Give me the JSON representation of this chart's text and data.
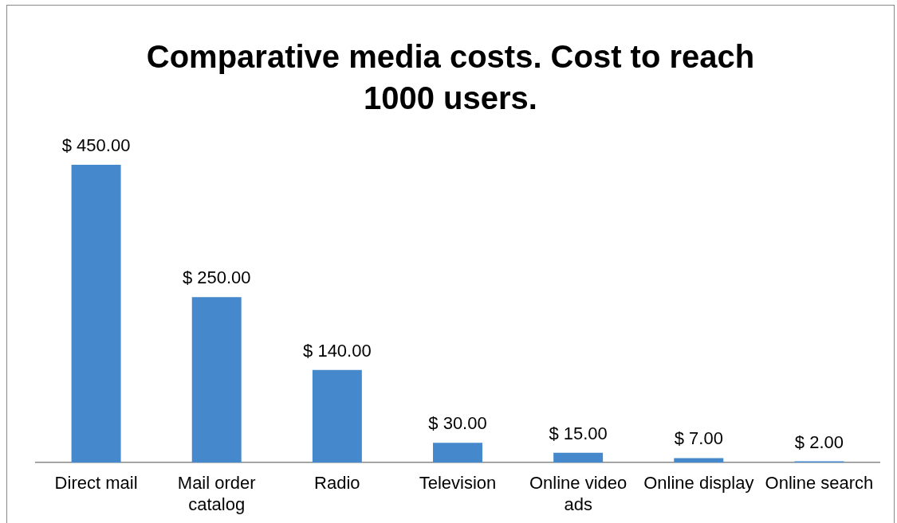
{
  "chart_data": {
    "type": "bar",
    "title": "Comparative media costs. Cost to reach 1000 users.",
    "categories": [
      "Direct mail",
      "Mail order catalog",
      "Radio",
      "Television",
      "Online video ads",
      "Online display",
      "Online search"
    ],
    "values": [
      450,
      250,
      140,
      30,
      15,
      7,
      2
    ],
    "value_labels": [
      "$ 450.00",
      "$ 250.00",
      "$ 140.00",
      "$ 30.00",
      "$ 15.00",
      "$ 7.00",
      "$ 2.00"
    ],
    "color": "#4589cc",
    "grid": false,
    "legend": false
  }
}
